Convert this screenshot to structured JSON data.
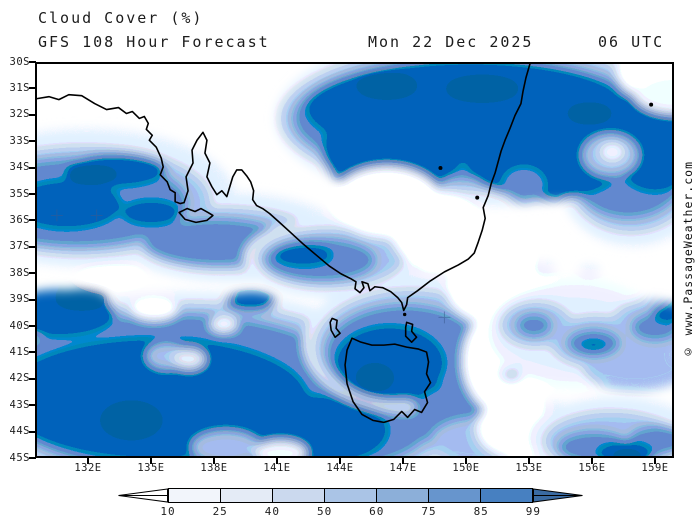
{
  "header": {
    "title": "Cloud Cover (%)",
    "model": "GFS 108 Hour Forecast",
    "date": "Mon 22 Dec 2025",
    "time": "06 UTC"
  },
  "watermark": "© www.PassageWeather.com",
  "axes": {
    "y_ticks": [
      "30S",
      "31S",
      "32S",
      "33S",
      "34S",
      "35S",
      "36S",
      "37S",
      "38S",
      "39S",
      "40S",
      "41S",
      "42S",
      "43S",
      "44S",
      "45S"
    ],
    "x_ticks": [
      "132E",
      "135E",
      "138E",
      "141E",
      "144E",
      "147E",
      "150E",
      "153E",
      "156E",
      "159E"
    ]
  },
  "legend": {
    "title": "Cloud Cover (%)",
    "labels": [
      "10",
      "25",
      "40",
      "50",
      "60",
      "75",
      "85",
      "99"
    ],
    "box_colors": [
      "#f2f5fb",
      "#e4ebf6",
      "#cbd9ee",
      "#aac4e6",
      "#8cafd9",
      "#6795cd",
      "#4780c1"
    ],
    "arrow_left_color": "#ffffff",
    "arrow_right_color": "#3a6ba3",
    "outline_color": "#000000"
  }
}
